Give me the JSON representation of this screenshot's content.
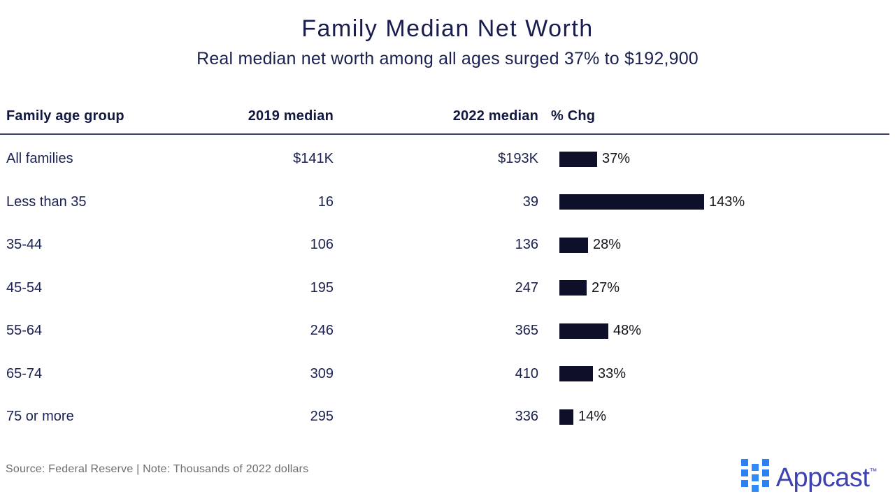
{
  "header": {
    "title": "Family Median Net Worth",
    "subtitle": "Real median net worth among all ages surged 37% to $192,900"
  },
  "table": {
    "columns": {
      "age_group": "Family age group",
      "median_2019": "2019 median",
      "median_2022": "2022 median",
      "pct_chg": "% Chg"
    }
  },
  "chart_data": {
    "type": "bar",
    "title": "Family Median Net Worth",
    "subtitle": "Real median net worth among all ages surged 37% to $192,900",
    "categories": [
      "All families",
      "Less than 35",
      "35-44",
      "45-54",
      "55-64",
      "65-74",
      "75 or more"
    ],
    "series": [
      {
        "name": "2019 median",
        "values": [
          141,
          16,
          106,
          195,
          246,
          309,
          295
        ]
      },
      {
        "name": "2022 median",
        "values": [
          193,
          39,
          136,
          247,
          365,
          410,
          336
        ]
      },
      {
        "name": "% Chg",
        "values": [
          37,
          143,
          28,
          27,
          48,
          33,
          14
        ]
      }
    ],
    "units": "Thousands of 2022 dollars",
    "bar_color": "#0d1028",
    "xlim": [
      0,
      160
    ],
    "legend": "none",
    "grid": false,
    "rows": [
      {
        "label": "All families",
        "m2019": "$141K",
        "m2022": "$193K",
        "pct": 37,
        "pct_label": "37%"
      },
      {
        "label": "Less than 35",
        "m2019": "16",
        "m2022": "39",
        "pct": 143,
        "pct_label": "143%"
      },
      {
        "label": "35-44",
        "m2019": "106",
        "m2022": "136",
        "pct": 28,
        "pct_label": "28%"
      },
      {
        "label": "45-54",
        "m2019": "195",
        "m2022": "247",
        "pct": 27,
        "pct_label": "27%"
      },
      {
        "label": "55-64",
        "m2019": "246",
        "m2022": "365",
        "pct": 48,
        "pct_label": "48%"
      },
      {
        "label": "65-74",
        "m2019": "309",
        "m2022": "410",
        "pct": 33,
        "pct_label": "33%"
      },
      {
        "label": "75 or more",
        "m2019": "295",
        "m2022": "336",
        "pct": 14,
        "pct_label": "14%"
      }
    ]
  },
  "footer": {
    "source_note": "Source: Federal Reserve | Note: Thousands of 2022 dollars",
    "logo_text": "Appcast",
    "logo_tm": "™",
    "logo_colors": {
      "squares_outer": "#2b80f6",
      "squares_mid": "#2f8bf9",
      "text": "#3d43b2"
    }
  }
}
